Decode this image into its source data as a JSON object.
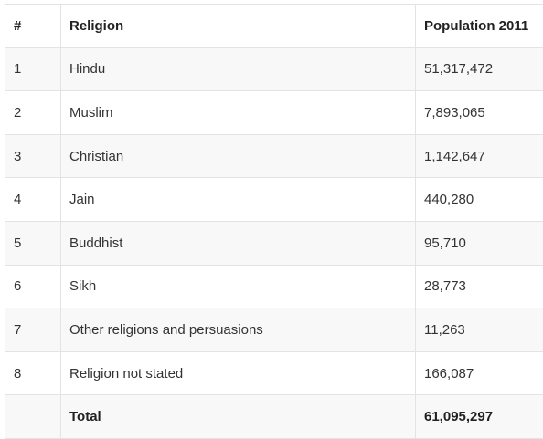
{
  "table": {
    "headers": [
      "#",
      "Religion",
      "Population 2011"
    ],
    "rows": [
      [
        "1",
        "Hindu",
        "51,317,472"
      ],
      [
        "2",
        "Muslim",
        "7,893,065"
      ],
      [
        "3",
        "Christian",
        "1,142,647"
      ],
      [
        "4",
        "Jain",
        "440,280"
      ],
      [
        "5",
        "Buddhist",
        "95,710"
      ],
      [
        "6",
        "Sikh",
        "28,773"
      ],
      [
        "7",
        "Other religions and persuasions",
        "11,263"
      ],
      [
        "8",
        "Religion not stated",
        "166,087"
      ]
    ],
    "total": [
      "",
      "Total",
      "61,095,297"
    ]
  }
}
